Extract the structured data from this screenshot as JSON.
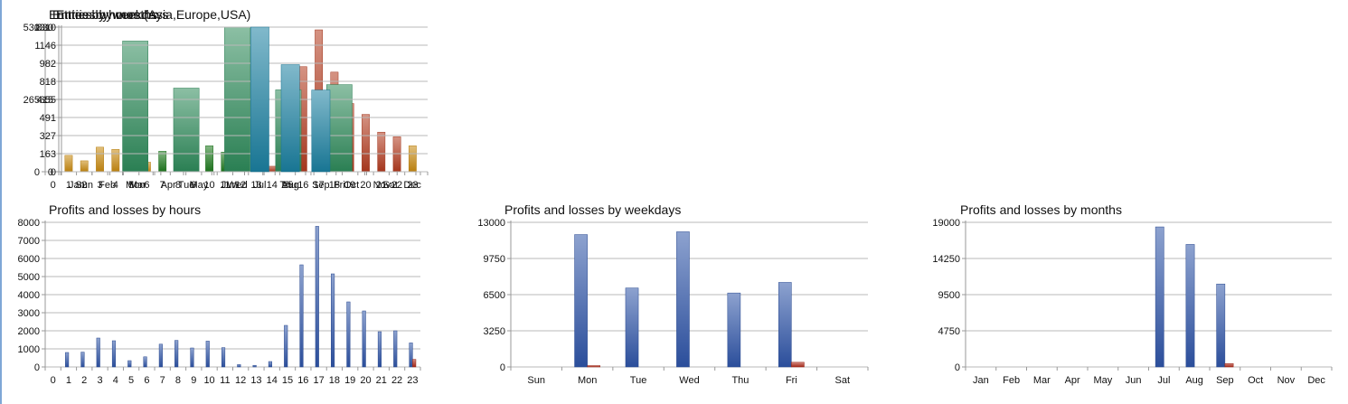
{
  "chart_data": [
    {
      "id": "entries-hours",
      "type": "bar",
      "title": "Entries by hours (Asia,Europe,USA)",
      "categories": [
        "0",
        "1",
        "2",
        "3",
        "4",
        "5",
        "6",
        "7",
        "8",
        "9",
        "10",
        "11",
        "12",
        "13",
        "14",
        "15",
        "16",
        "17",
        "18",
        "19",
        "20",
        "21",
        "22",
        "23"
      ],
      "values": [
        0,
        60,
        40,
        90,
        82,
        18,
        35,
        75,
        82,
        72,
        95,
        72,
        12,
        8,
        20,
        145,
        385,
        520,
        365,
        250,
        210,
        145,
        128,
        95
      ],
      "colors": [
        null,
        "#c98a10",
        "#c98a10",
        "#c98a10",
        "#c98a10",
        "#c98a10",
        "#c98a10",
        "#1e7a1e",
        "#1e7a1e",
        "#1e7a1e",
        "#1e7a1e",
        "#1e7a1e",
        "#1e7a1e",
        "#1e7a1e",
        "#b23a1e",
        "#b23a1e",
        "#b23a1e",
        "#b23a1e",
        "#b23a1e",
        "#b23a1e",
        "#b23a1e",
        "#b23a1e",
        "#b23a1e",
        "#c98a10"
      ],
      "ylim": [
        0,
        530
      ],
      "yticks": [
        "0",
        "265",
        "530"
      ],
      "grid": true
    },
    {
      "id": "entries-weekdays",
      "type": "bar",
      "title": "Entries by weekdays",
      "categories": [
        "Sun",
        "Mon",
        "Tue",
        "Wed",
        "Thu",
        "Fri",
        "Sat"
      ],
      "values": [
        0,
        750,
        480,
        830,
        470,
        500,
        0
      ],
      "color": "#2e8a5a",
      "ylim": [
        0,
        830
      ],
      "yticks": [
        "0",
        "415",
        "830"
      ],
      "grid": true
    },
    {
      "id": "entries-months",
      "type": "bar",
      "title": "Entries by months",
      "categories": [
        "Jan",
        "Feb",
        "Mar",
        "Apr",
        "May",
        "Jun",
        "Jul",
        "Aug",
        "Sep",
        "Oct",
        "Nov",
        "Dec"
      ],
      "values": [
        0,
        0,
        0,
        0,
        0,
        0,
        1310,
        970,
        740,
        0,
        0,
        0
      ],
      "color": "#1a7fa0",
      "ylim": [
        0,
        1310
      ],
      "yticks": [
        "0",
        "163",
        "327",
        "491",
        "655",
        "818",
        "982",
        "1146",
        "1310"
      ],
      "grid": true
    },
    {
      "id": "pl-hours",
      "type": "bar",
      "title": "Profits and losses by hours",
      "categories": [
        "0",
        "1",
        "2",
        "3",
        "4",
        "5",
        "6",
        "7",
        "8",
        "9",
        "10",
        "11",
        "12",
        "13",
        "14",
        "15",
        "16",
        "17",
        "18",
        "19",
        "20",
        "21",
        "22",
        "23"
      ],
      "series": [
        {
          "color": "#2f55a8",
          "values": [
            0,
            800,
            820,
            1600,
            1450,
            350,
            560,
            1260,
            1470,
            1050,
            1430,
            1070,
            130,
            90,
            300,
            2300,
            5650,
            7780,
            5150,
            3600,
            3100,
            1950,
            2000,
            1330
          ]
        },
        {
          "color": "#b02a1a",
          "values": [
            0,
            0,
            0,
            0,
            0,
            0,
            0,
            0,
            0,
            0,
            0,
            0,
            0,
            0,
            0,
            0,
            0,
            0,
            0,
            0,
            0,
            0,
            0,
            420
          ]
        }
      ],
      "ylim": [
        0,
        8000
      ],
      "yticks": [
        "0",
        "1000",
        "2000",
        "3000",
        "4000",
        "5000",
        "6000",
        "7000",
        "8000"
      ],
      "grid": true
    },
    {
      "id": "pl-weekdays",
      "type": "bar",
      "title": "Profits and losses by weekdays",
      "categories": [
        "Sun",
        "Mon",
        "Tue",
        "Wed",
        "Thu",
        "Fri",
        "Sat"
      ],
      "series": [
        {
          "color": "#2f55a8",
          "values": [
            0,
            11900,
            7100,
            12150,
            6650,
            7600,
            0
          ]
        },
        {
          "color": "#b02a1a",
          "values": [
            0,
            80,
            0,
            0,
            0,
            420,
            0
          ]
        }
      ],
      "ylim": [
        0,
        13000
      ],
      "yticks": [
        "0",
        "3250",
        "6500",
        "9750",
        "13000"
      ],
      "grid": true
    },
    {
      "id": "pl-months",
      "type": "bar",
      "title": "Profits and losses by months",
      "categories": [
        "Jan",
        "Feb",
        "Mar",
        "Apr",
        "May",
        "Jun",
        "Jul",
        "Aug",
        "Sep",
        "Oct",
        "Nov",
        "Dec"
      ],
      "series": [
        {
          "color": "#2f55a8",
          "values": [
            0,
            0,
            0,
            0,
            0,
            0,
            18400,
            16100,
            10900,
            0,
            0,
            0
          ]
        },
        {
          "color": "#b02a1a",
          "values": [
            0,
            0,
            0,
            0,
            0,
            0,
            0,
            0,
            450,
            0,
            0,
            0
          ]
        }
      ],
      "ylim": [
        0,
        19000
      ],
      "yticks": [
        "0",
        "4750",
        "9500",
        "14250",
        "19000"
      ],
      "grid": true
    }
  ]
}
